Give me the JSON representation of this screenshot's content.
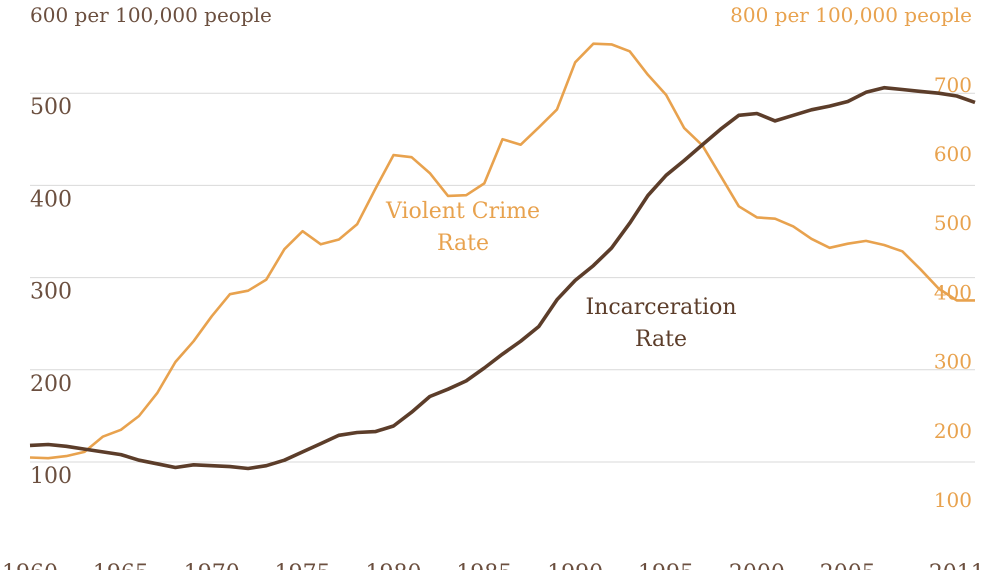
{
  "chart_data": {
    "type": "line",
    "left_axis_title": "600 per 100,000 people",
    "right_axis_title": "800 per 100,000 people",
    "left_ticks": [
      "100",
      "200",
      "300",
      "400",
      "500"
    ],
    "right_ticks": [
      "100",
      "200",
      "300",
      "400",
      "500",
      "600",
      "700"
    ],
    "x_ticks": [
      "1960",
      "1965",
      "1970",
      "1975",
      "1980",
      "1985",
      "1990",
      "1995",
      "2000",
      "2005",
      "2011"
    ],
    "xlim": [
      1960,
      2012
    ],
    "left_ylim": [
      50,
      600
    ],
    "right_ylim": [
      0,
      800
    ],
    "grid": true,
    "colors": {
      "violent": "#E8A24E",
      "incarceration": "#5C3D2A",
      "left_text": "#6B4F3F",
      "grid": "#d9d9d9"
    },
    "series": [
      {
        "name": "Violent Crime Rate",
        "axis": "right",
        "label_lines": [
          "Violent Crime",
          "Rate"
        ],
        "x": [
          1960,
          1961,
          1962,
          1963,
          1964,
          1965,
          1966,
          1967,
          1968,
          1969,
          1970,
          1971,
          1972,
          1973,
          1974,
          1975,
          1976,
          1977,
          1978,
          1979,
          1980,
          1981,
          1982,
          1983,
          1984,
          1985,
          1986,
          1987,
          1988,
          1989,
          1990,
          1991,
          1992,
          1993,
          1994,
          1995,
          1996,
          1997,
          1998,
          1999,
          2000,
          2001,
          2002,
          2003,
          2004,
          2005,
          2006,
          2007,
          2008,
          2009,
          2010,
          2011,
          2012
        ],
        "values": [
          160,
          159,
          162,
          168,
          190,
          200,
          220,
          253,
          298,
          328,
          364,
          396,
          401,
          417,
          461,
          487,
          468,
          475,
          497,
          548,
          597,
          594,
          571,
          538,
          539,
          556,
          620,
          612,
          637,
          663,
          731,
          758,
          757,
          747,
          713,
          684,
          636,
          611,
          567,
          523,
          507,
          505,
          494,
          476,
          463,
          469,
          473,
          467,
          458,
          432,
          404,
          387,
          387
        ]
      },
      {
        "name": "Incarceration Rate",
        "axis": "left",
        "label_lines": [
          "Incarceration",
          "Rate"
        ],
        "x": [
          1960,
          1961,
          1962,
          1963,
          1964,
          1965,
          1966,
          1967,
          1968,
          1969,
          1970,
          1971,
          1972,
          1973,
          1974,
          1975,
          1976,
          1977,
          1978,
          1979,
          1980,
          1981,
          1982,
          1983,
          1984,
          1985,
          1986,
          1987,
          1988,
          1989,
          1990,
          1991,
          1992,
          1993,
          1994,
          1995,
          1996,
          1997,
          1998,
          1999,
          2000,
          2001,
          2002,
          2003,
          2004,
          2005,
          2006,
          2007,
          2008,
          2009,
          2010,
          2011,
          2012
        ],
        "values": [
          118,
          119,
          117,
          114,
          111,
          108,
          102,
          98,
          94,
          97,
          96,
          95,
          93,
          96,
          102,
          111,
          120,
          129,
          132,
          133,
          139,
          154,
          171,
          179,
          188,
          202,
          217,
          231,
          247,
          276,
          297,
          313,
          332,
          359,
          389,
          411,
          427,
          444,
          461,
          476,
          478,
          470,
          476,
          482,
          486,
          491,
          501,
          506,
          504,
          502,
          500,
          497,
          490
        ]
      }
    ]
  }
}
